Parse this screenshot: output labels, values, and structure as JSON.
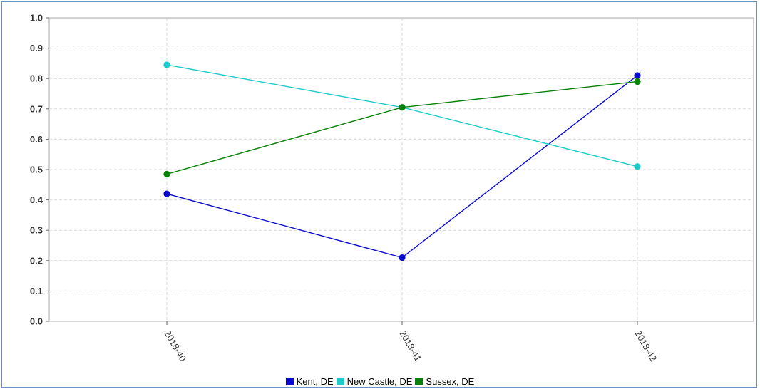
{
  "chart_data": {
    "type": "line",
    "categories": [
      "2018-40",
      "2018-41",
      "2018-42"
    ],
    "series": [
      {
        "name": "Kent, DE",
        "color": "#0a0acd",
        "values": [
          0.42,
          0.21,
          0.81
        ]
      },
      {
        "name": "New Castle, DE",
        "color": "#1ecbcb",
        "values": [
          0.845,
          0.705,
          0.51
        ]
      },
      {
        "name": "Sussex, DE",
        "color": "#078107",
        "values": [
          0.485,
          0.705,
          0.79
        ]
      }
    ],
    "ylim": [
      0,
      1.0
    ],
    "yticks": [
      "0.0",
      "0.1",
      "0.2",
      "0.3",
      "0.4",
      "0.5",
      "0.6",
      "0.7",
      "0.8",
      "0.9",
      "1.0"
    ],
    "grid": true,
    "legend_position": "bottom"
  }
}
